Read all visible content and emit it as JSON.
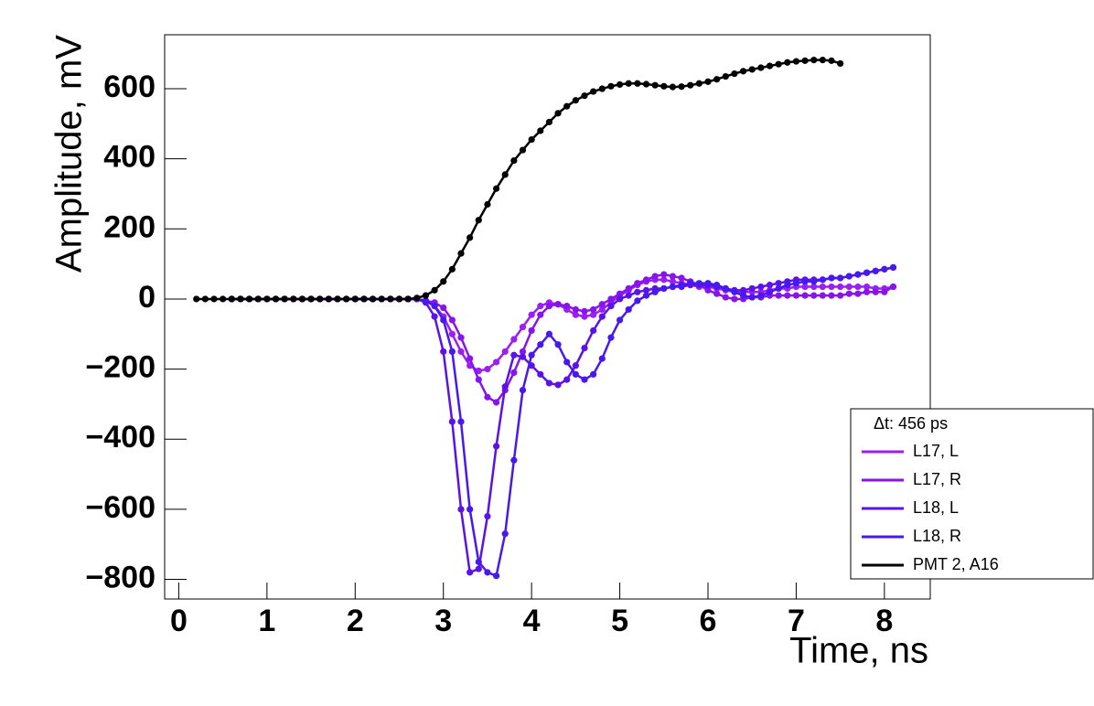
{
  "chart_data": {
    "type": "line",
    "xlabel": "Time, ns",
    "ylabel": "Amplitude, mV",
    "xlim": [
      -0.16,
      8.52
    ],
    "ylim": [
      -856,
      754
    ],
    "xticks": [
      0,
      1,
      2,
      3,
      4,
      5,
      6,
      7,
      8
    ],
    "yticks": [
      {
        "value": -800,
        "label": "−800"
      },
      {
        "value": -600,
        "label": "−600"
      },
      {
        "value": -400,
        "label": "−400"
      },
      {
        "value": -200,
        "label": "−200"
      },
      0,
      200,
      400,
      600
    ],
    "legend_title": "Δt: 456 ps",
    "legend": "bottom right",
    "series": [
      {
        "name": "L17, L",
        "color": "#9b1ff5",
        "x": [
          0.6,
          0.7,
          0.8,
          0.9,
          1.0,
          1.1,
          1.2,
          1.3,
          1.4,
          1.5,
          1.6,
          1.7,
          1.8,
          1.9,
          2.0,
          2.1,
          2.2,
          2.3,
          2.4,
          2.5,
          2.6,
          2.7,
          2.8,
          2.9,
          3.0,
          3.1,
          3.2,
          3.3,
          3.4,
          3.5,
          3.6,
          3.7,
          3.8,
          3.9,
          4.0,
          4.1,
          4.2,
          4.3,
          4.4,
          4.5,
          4.6,
          4.7,
          4.8,
          4.9,
          5.0,
          5.1,
          5.2,
          5.3,
          5.4,
          5.5,
          5.6,
          5.7,
          5.8,
          5.9,
          6.0,
          6.1,
          6.2,
          6.3,
          6.4,
          6.5,
          6.6,
          6.7,
          6.8,
          6.9,
          7.0,
          7.1,
          7.2,
          7.3,
          7.4,
          7.5,
          7.6,
          7.7,
          7.8,
          7.9,
          8.0,
          8.1
        ],
        "values": [
          0,
          0,
          0,
          0,
          0,
          0,
          0,
          0,
          0,
          0,
          0,
          0,
          0,
          0,
          0,
          0,
          0,
          0,
          0,
          0,
          0,
          0,
          -5,
          -20,
          -50,
          -100,
          -150,
          -190,
          -205,
          -200,
          -180,
          -150,
          -115,
          -80,
          -45,
          -20,
          -10,
          -15,
          -30,
          -45,
          -50,
          -45,
          -30,
          -10,
          10,
          25,
          40,
          50,
          55,
          55,
          50,
          45,
          40,
          35,
          35,
          30,
          25,
          20,
          20,
          20,
          20,
          25,
          30,
          30,
          35,
          35,
          35,
          35,
          35,
          35,
          35,
          35,
          35,
          30,
          30,
          35
        ]
      },
      {
        "name": "L17, R",
        "color": "#8714ea",
        "x": [
          0.6,
          0.7,
          0.8,
          0.9,
          1.0,
          1.1,
          1.2,
          1.3,
          1.4,
          1.5,
          1.6,
          1.7,
          1.8,
          1.9,
          2.0,
          2.1,
          2.2,
          2.3,
          2.4,
          2.5,
          2.6,
          2.7,
          2.8,
          2.9,
          3.0,
          3.1,
          3.2,
          3.3,
          3.4,
          3.5,
          3.6,
          3.7,
          3.8,
          3.9,
          4.0,
          4.1,
          4.2,
          4.3,
          4.4,
          4.5,
          4.6,
          4.7,
          4.8,
          4.9,
          5.0,
          5.1,
          5.2,
          5.3,
          5.4,
          5.5,
          5.6,
          5.7,
          5.8,
          5.9,
          6.0,
          6.1,
          6.2,
          6.3,
          6.4,
          6.5,
          6.6,
          6.7,
          6.8,
          6.9,
          7.0,
          7.1,
          7.2,
          7.3,
          7.4,
          7.5,
          7.6,
          7.7,
          7.8,
          7.9,
          8.0,
          8.1
        ],
        "values": [
          0,
          0,
          0,
          0,
          0,
          0,
          0,
          0,
          0,
          0,
          0,
          0,
          0,
          0,
          0,
          0,
          0,
          0,
          0,
          0,
          0,
          0,
          -5,
          -10,
          -25,
          -60,
          -110,
          -170,
          -230,
          -280,
          -295,
          -260,
          -210,
          -150,
          -90,
          -45,
          -20,
          -15,
          -20,
          -30,
          -35,
          -30,
          -15,
          0,
          15,
          30,
          45,
          55,
          65,
          70,
          65,
          60,
          50,
          40,
          25,
          15,
          5,
          0,
          0,
          5,
          5,
          10,
          10,
          10,
          10,
          10,
          10,
          10,
          10,
          10,
          15,
          15,
          20,
          20,
          20,
          35
        ]
      },
      {
        "name": "L18, L",
        "color": "#5a12e8",
        "x": [
          0.6,
          0.7,
          0.8,
          0.9,
          1.0,
          1.1,
          1.2,
          1.3,
          1.4,
          1.5,
          1.6,
          1.7,
          1.8,
          1.9,
          2.0,
          2.1,
          2.2,
          2.3,
          2.4,
          2.5,
          2.6,
          2.7,
          2.8,
          2.9,
          3.0,
          3.1,
          3.2,
          3.3,
          3.4,
          3.5,
          3.6,
          3.7,
          3.8,
          3.9,
          4.0,
          4.1,
          4.2,
          4.3,
          4.4,
          4.5,
          4.6,
          4.7,
          4.8,
          4.9,
          5.0,
          5.1,
          5.2,
          5.3,
          5.4,
          5.5,
          5.6,
          5.7,
          5.8,
          5.9,
          6.0,
          6.1,
          6.2,
          6.3,
          6.4,
          6.5,
          6.6,
          6.7,
          6.8,
          6.9,
          7.0,
          7.1,
          7.2,
          7.3,
          7.4,
          7.5,
          7.6,
          7.7,
          7.8,
          7.9,
          8.0,
          8.1
        ],
        "values": [
          0,
          0,
          0,
          0,
          0,
          0,
          0,
          0,
          0,
          0,
          0,
          0,
          0,
          0,
          0,
          0,
          0,
          0,
          0,
          0,
          0,
          0,
          -10,
          -50,
          -150,
          -350,
          -600,
          -780,
          -770,
          -620,
          -420,
          -250,
          -160,
          -165,
          -190,
          -215,
          -240,
          -245,
          -230,
          -190,
          -140,
          -90,
          -50,
          -20,
          0,
          10,
          20,
          25,
          30,
          30,
          35,
          35,
          40,
          40,
          40,
          35,
          30,
          25,
          25,
          30,
          35,
          40,
          45,
          50,
          55,
          55,
          55,
          55,
          60,
          60,
          65,
          70,
          75,
          80,
          85,
          90
        ]
      },
      {
        "name": "L18, R",
        "color": "#4818f0",
        "x": [
          0.6,
          0.7,
          0.8,
          0.9,
          1.0,
          1.1,
          1.2,
          1.3,
          1.4,
          1.5,
          1.6,
          1.7,
          1.8,
          1.9,
          2.0,
          2.1,
          2.2,
          2.3,
          2.4,
          2.5,
          2.6,
          2.7,
          2.8,
          2.9,
          3.0,
          3.1,
          3.2,
          3.3,
          3.4,
          3.5,
          3.6,
          3.7,
          3.8,
          3.9,
          4.0,
          4.1,
          4.2,
          4.3,
          4.4,
          4.5,
          4.6,
          4.7,
          4.8,
          4.9,
          5.0,
          5.1,
          5.2,
          5.3,
          5.4,
          5.5,
          5.6,
          5.7,
          5.8,
          5.9,
          6.0,
          6.1,
          6.2,
          6.3,
          6.4,
          6.5,
          6.6,
          6.7,
          6.8,
          6.9,
          7.0,
          7.1,
          7.2,
          7.3,
          7.4,
          7.5,
          7.6,
          7.7,
          7.8,
          7.9,
          8.0,
          8.1
        ],
        "values": [
          0,
          0,
          0,
          0,
          0,
          0,
          0,
          0,
          0,
          0,
          0,
          0,
          0,
          0,
          0,
          0,
          0,
          0,
          0,
          0,
          0,
          0,
          -5,
          -20,
          -60,
          -150,
          -350,
          -600,
          -750,
          -780,
          -790,
          -670,
          -460,
          -260,
          -160,
          -130,
          -100,
          -130,
          -180,
          -215,
          -230,
          -215,
          -170,
          -110,
          -60,
          -30,
          -5,
          10,
          20,
          30,
          35,
          40,
          45,
          45,
          45,
          40,
          30,
          20,
          10,
          5,
          10,
          20,
          30,
          40,
          45,
          50,
          50,
          55,
          60,
          60,
          65,
          70,
          75,
          80,
          85,
          90
        ]
      },
      {
        "name": "PMT 2, A16",
        "color": "#000000",
        "x": [
          0.2,
          0.3,
          0.4,
          0.5,
          0.6,
          0.7,
          0.8,
          0.9,
          1.0,
          1.1,
          1.2,
          1.3,
          1.4,
          1.5,
          1.6,
          1.7,
          1.8,
          1.9,
          2.0,
          2.1,
          2.2,
          2.3,
          2.4,
          2.5,
          2.6,
          2.7,
          2.8,
          2.9,
          3.0,
          3.1,
          3.2,
          3.3,
          3.4,
          3.5,
          3.6,
          3.7,
          3.8,
          3.9,
          4.0,
          4.1,
          4.2,
          4.3,
          4.4,
          4.5,
          4.6,
          4.7,
          4.8,
          4.9,
          5.0,
          5.1,
          5.2,
          5.3,
          5.4,
          5.5,
          5.6,
          5.7,
          5.8,
          5.9,
          6.0,
          6.1,
          6.2,
          6.3,
          6.4,
          6.5,
          6.6,
          6.7,
          6.8,
          6.9,
          7.0,
          7.1,
          7.2,
          7.3,
          7.4,
          7.5
        ],
        "values": [
          0,
          0,
          0,
          0,
          0,
          0,
          0,
          0,
          0,
          0,
          0,
          0,
          0,
          0,
          0,
          0,
          0,
          0,
          0,
          0,
          0,
          0,
          0,
          0,
          0,
          3,
          10,
          25,
          50,
          85,
          130,
          175,
          225,
          270,
          315,
          355,
          395,
          425,
          455,
          480,
          505,
          530,
          550,
          567,
          580,
          592,
          600,
          607,
          612,
          615,
          615,
          613,
          610,
          607,
          605,
          606,
          610,
          615,
          620,
          627,
          635,
          643,
          650,
          655,
          660,
          665,
          670,
          675,
          678,
          680,
          682,
          682,
          680,
          672
        ]
      }
    ]
  }
}
